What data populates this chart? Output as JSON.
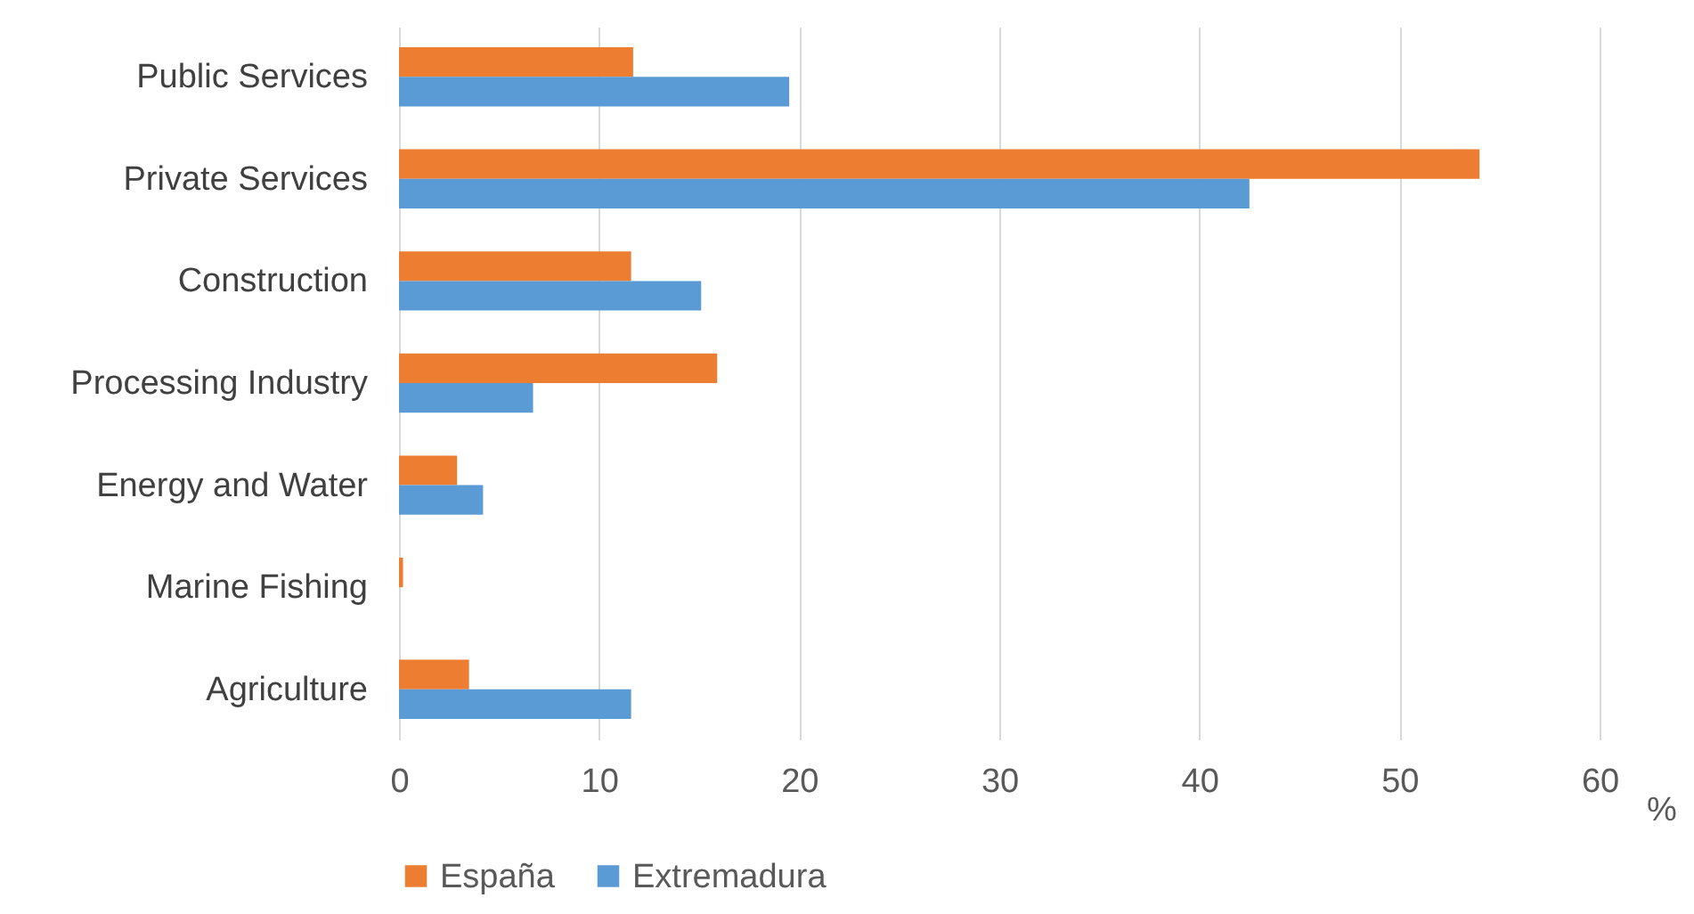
{
  "chart_data": {
    "type": "bar",
    "orientation": "horizontal",
    "xlabel": "%",
    "categories": [
      "Public Services",
      "Private Services",
      "Construction",
      "Processing Industry",
      "Energy and Water",
      "Marine Fishing",
      "Agriculture"
    ],
    "series": [
      {
        "name": "España",
        "color": "#ed7d31",
        "values": [
          11.7,
          54.0,
          11.6,
          15.9,
          2.9,
          0.2,
          3.5
        ]
      },
      {
        "name": "Extremadura",
        "color": "#5b9bd5",
        "values": [
          19.5,
          42.5,
          15.1,
          6.7,
          4.2,
          0,
          11.6
        ]
      }
    ],
    "xlim": [
      0,
      60
    ],
    "xticks": [
      0,
      10,
      20,
      30,
      40,
      50,
      60
    ],
    "grid": "x",
    "legend": "bottom"
  }
}
